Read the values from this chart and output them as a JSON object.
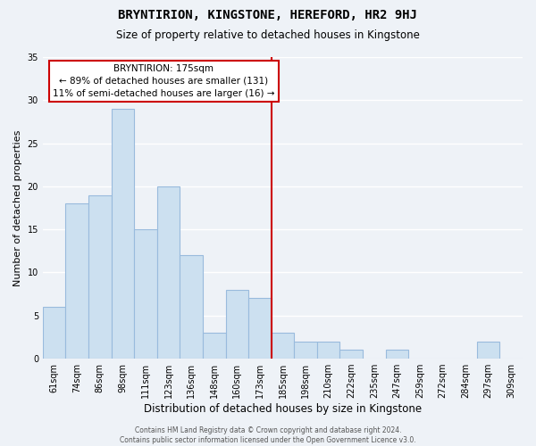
{
  "title": "BRYNTIRION, KINGSTONE, HEREFORD, HR2 9HJ",
  "subtitle": "Size of property relative to detached houses in Kingstone",
  "xlabel": "Distribution of detached houses by size in Kingstone",
  "ylabel": "Number of detached properties",
  "bar_color": "#cce0f0",
  "bar_edge_color": "#99bbdd",
  "background_color": "#eef2f7",
  "grid_color": "#ffffff",
  "bin_labels": [
    "61sqm",
    "74sqm",
    "86sqm",
    "98sqm",
    "111sqm",
    "123sqm",
    "136sqm",
    "148sqm",
    "160sqm",
    "173sqm",
    "185sqm",
    "198sqm",
    "210sqm",
    "222sqm",
    "235sqm",
    "247sqm",
    "259sqm",
    "272sqm",
    "284sqm",
    "297sqm",
    "309sqm"
  ],
  "bar_heights": [
    6,
    18,
    19,
    29,
    15,
    20,
    12,
    3,
    8,
    7,
    3,
    2,
    2,
    1,
    0,
    1,
    0,
    0,
    0,
    2,
    0
  ],
  "ylim": [
    0,
    35
  ],
  "yticks": [
    0,
    5,
    10,
    15,
    20,
    25,
    30,
    35
  ],
  "vline_x_index": 9.5,
  "vline_color": "#cc0000",
  "annotation_title": "BRYNTIRION: 175sqm",
  "annotation_line1": "← 89% of detached houses are smaller (131)",
  "annotation_line2": "11% of semi-detached houses are larger (16) →",
  "annotation_box_color": "#ffffff",
  "annotation_box_edge": "#cc0000",
  "footer_line1": "Contains HM Land Registry data © Crown copyright and database right 2024.",
  "footer_line2": "Contains public sector information licensed under the Open Government Licence v3.0."
}
